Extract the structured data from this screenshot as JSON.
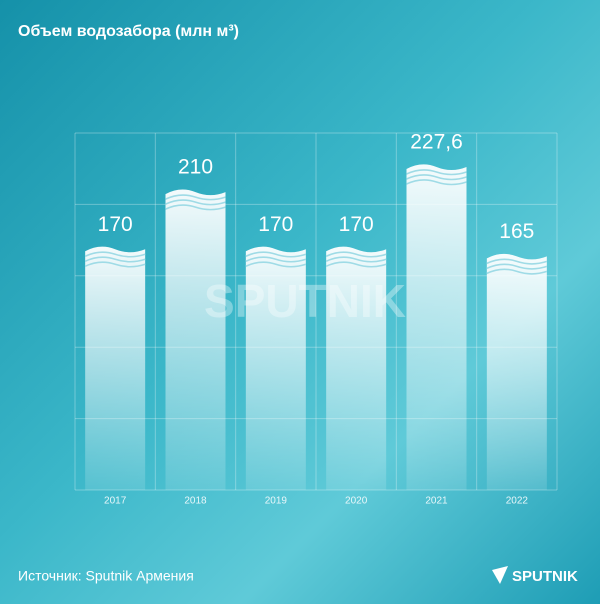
{
  "chart_data": {
    "type": "bar",
    "title": "Объем водозабора (млн м³)",
    "categories": [
      "2017",
      "2018",
      "2019",
      "2020",
      "2021",
      "2022"
    ],
    "values": [
      170,
      210,
      170,
      170,
      227.6,
      165
    ],
    "value_labels": [
      "170",
      "210",
      "170",
      "170",
      "227,6",
      "165"
    ],
    "color": "#ffffff",
    "watermark": "SPUTNIK",
    "source": "Источник: Sputnik Армения",
    "logo": "SPUTNIK"
  }
}
